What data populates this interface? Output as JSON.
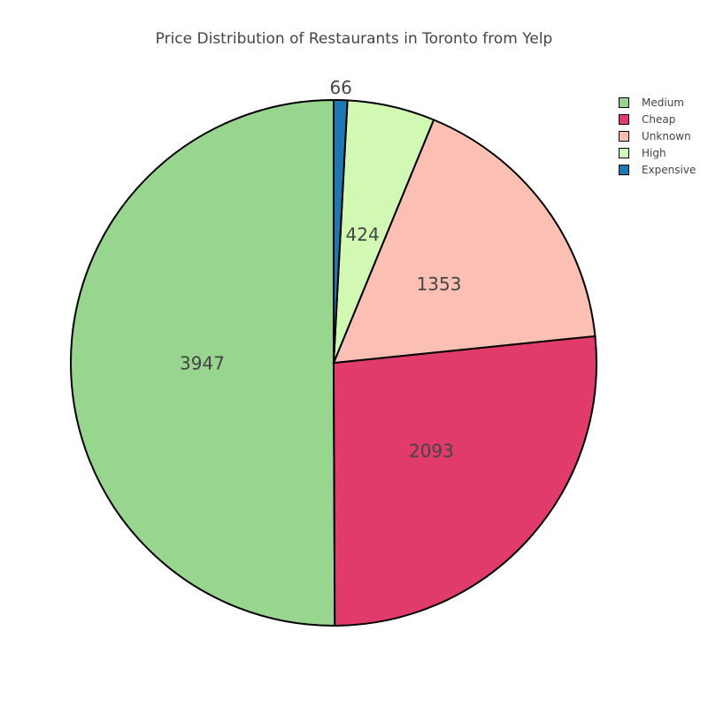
{
  "chart_data": {
    "type": "pie",
    "title": "Price Distribution of Restaurants in Toronto from Yelp",
    "slices": [
      {
        "label": "Medium",
        "value": 3947,
        "color": "#98d58e"
      },
      {
        "label": "Cheap",
        "value": 2093,
        "color": "#e13b6b"
      },
      {
        "label": "Unknown",
        "value": 1353,
        "color": "#fcbfb3"
      },
      {
        "label": "High",
        "value": 424,
        "color": "#d2f9b4"
      },
      {
        "label": "Expensive",
        "value": 66,
        "color": "#1f77b4"
      }
    ],
    "direction": "counterclockwise",
    "start": "top",
    "legend_position": "top-right",
    "label_color": "#444444",
    "outline_color": "#000000"
  }
}
